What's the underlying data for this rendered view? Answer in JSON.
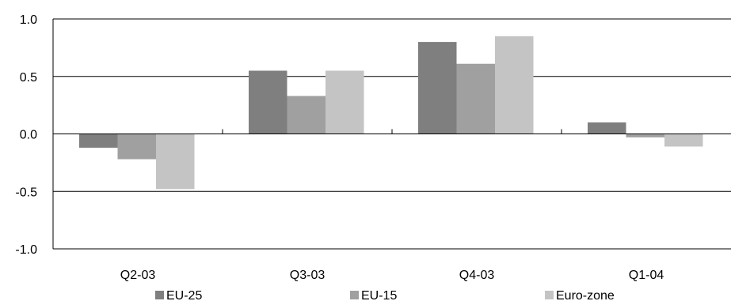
{
  "chart_data": {
    "type": "bar",
    "title": "",
    "xlabel": "",
    "ylabel": "",
    "categories": [
      "Q2-03",
      "Q3-03",
      "Q4-03",
      "Q1-04"
    ],
    "series": [
      {
        "name": "EU-25",
        "values": [
          -0.12,
          0.55,
          0.8,
          0.1
        ],
        "color": "#7f7f7f"
      },
      {
        "name": "EU-15",
        "values": [
          -0.22,
          0.33,
          0.61,
          -0.03
        ],
        "color": "#a0a0a0"
      },
      {
        "name": "Euro-zone",
        "values": [
          -0.48,
          0.55,
          0.85,
          -0.11
        ],
        "color": "#c4c4c4"
      }
    ],
    "ylim": [
      -1.0,
      1.0
    ],
    "yticks": [
      1.0,
      0.5,
      0.0,
      -0.5,
      -1.0
    ],
    "ytick_labels": [
      "1.0",
      "0.5",
      "0.0",
      "-0.5",
      "-1.0"
    ],
    "grid": true,
    "legend": "bottom"
  }
}
